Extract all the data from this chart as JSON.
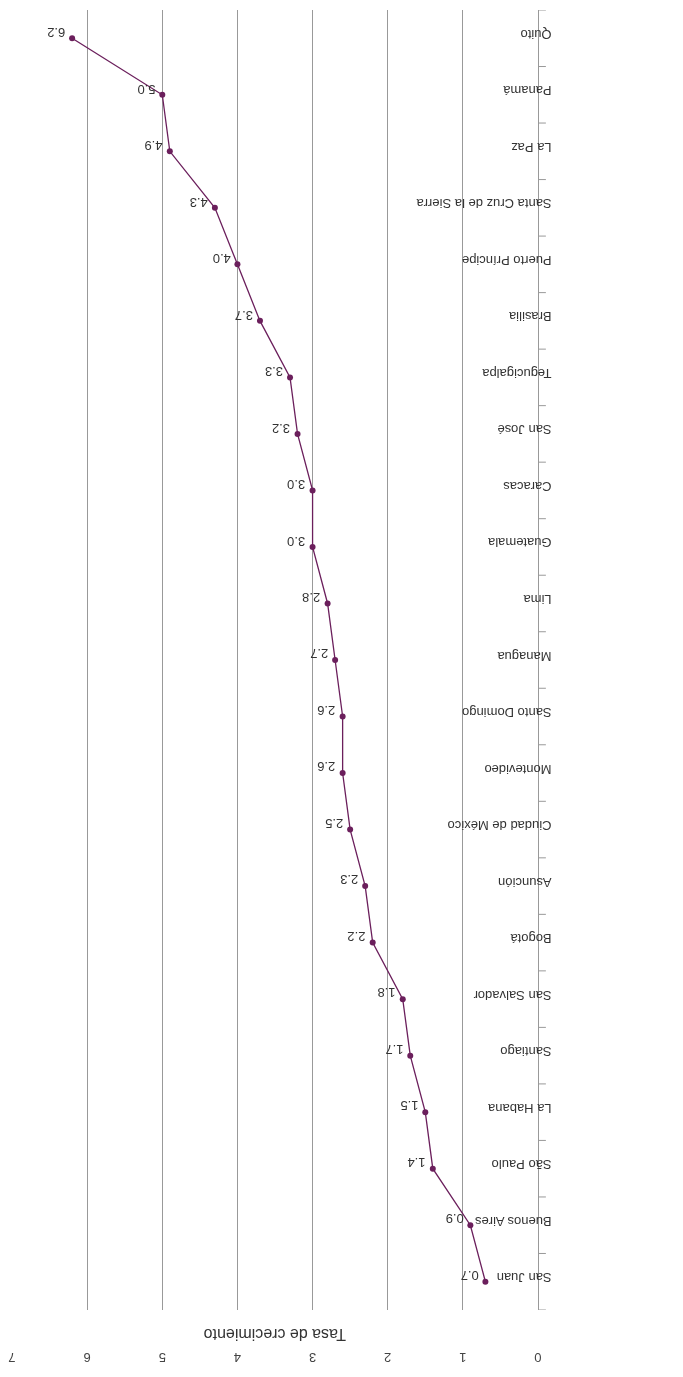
{
  "chart_data": {
    "type": "line",
    "orientation": "horizontal",
    "xlabel": "Tasa de crecimiento",
    "categories": [
      "Quito",
      "Panamá",
      "La Paz",
      "Santa Cruz de la Sierra",
      "Puerto Príncipe",
      "Brasilia",
      "Tegucigalpa",
      "San José",
      "Caracas",
      "Guatemala",
      "Lima",
      "Managua",
      "Santo Domingo",
      "Montevideo",
      "Ciudad de México",
      "Asunción",
      "Bogotá",
      "San Salvador",
      "Santiago",
      "La Habana",
      "São Paulo",
      "Buenos Aires",
      "San Juan"
    ],
    "series": [
      {
        "color": "#6b1f5c",
        "values": [
          6.2,
          5.0,
          4.9,
          4.3,
          4.0,
          3.7,
          3.3,
          3.2,
          3.0,
          3.0,
          2.8,
          2.7,
          2.6,
          2.6,
          2.5,
          2.3,
          2.2,
          1.8,
          1.7,
          1.5,
          1.4,
          0.9,
          0.7
        ],
        "value_labels": [
          "6.2",
          "5.0",
          "4.9",
          "4.3",
          "4.0",
          "3.7",
          "3.3",
          "3.2",
          "3.0",
          "3.0",
          "2.8",
          "2.7",
          "2.6",
          "2.6",
          "2.5",
          "2.3",
          "2.2",
          "1.8",
          "1.7",
          "1.5",
          "1.4",
          "0.9",
          "0.7"
        ]
      }
    ],
    "xlim": [
      7,
      0
    ],
    "xticks": [
      0,
      1,
      2,
      3,
      4,
      5,
      6,
      7
    ],
    "grid": "x",
    "marker": "circle",
    "line_style": "solid"
  }
}
